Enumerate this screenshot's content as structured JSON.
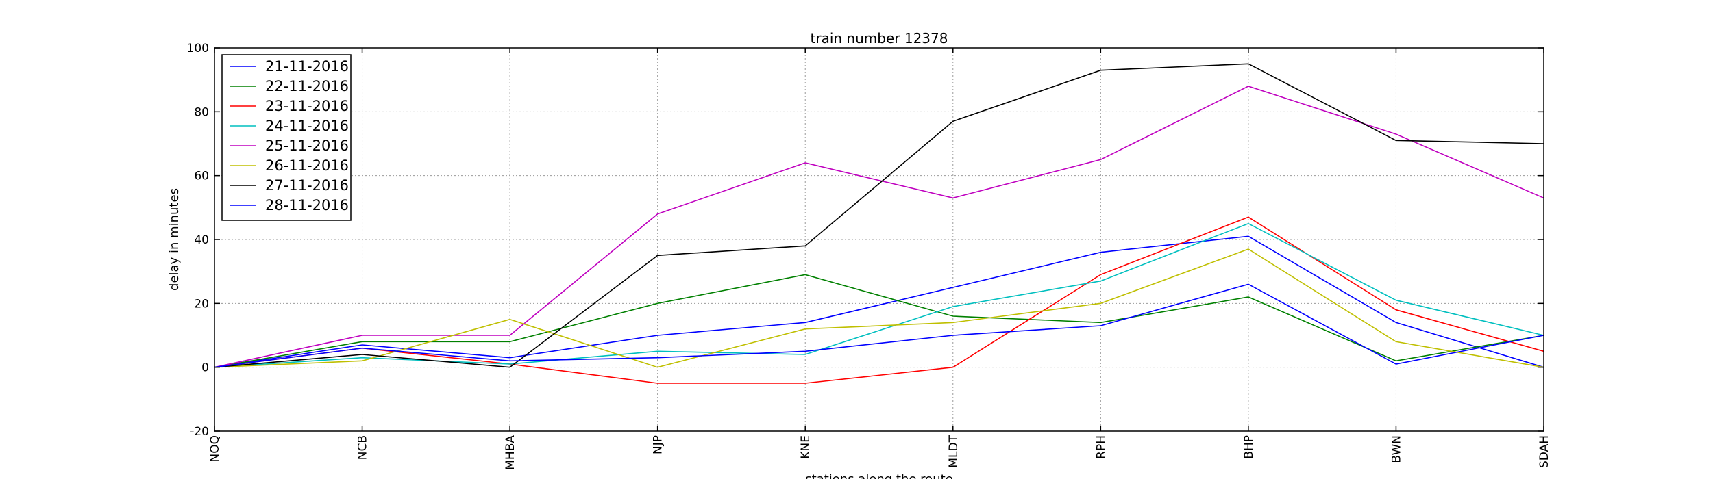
{
  "chart_data": {
    "type": "line",
    "title": "train number 12378",
    "xlabel": "stations along the route",
    "ylabel": "delay in minutes",
    "categories": [
      "NOQ",
      "NCB",
      "MHBA",
      "NJP",
      "KNE",
      "MLDT",
      "RPH",
      "BHP",
      "BWN",
      "SDAH"
    ],
    "ylim": [
      -20,
      100
    ],
    "yticks": [
      -20,
      0,
      20,
      40,
      60,
      80,
      100
    ],
    "grid": true,
    "legend_position": "top-left",
    "series": [
      {
        "name": "21-11-2016",
        "color": "#0000ff",
        "values": [
          0,
          7,
          3,
          10,
          14,
          25,
          36,
          41,
          14,
          0
        ]
      },
      {
        "name": "22-11-2016",
        "color": "#008000",
        "values": [
          0,
          8,
          8,
          20,
          29,
          16,
          14,
          22,
          2,
          10
        ]
      },
      {
        "name": "23-11-2016",
        "color": "#ff0000",
        "values": [
          0,
          6,
          1,
          -5,
          -5,
          0,
          29,
          47,
          18,
          5
        ]
      },
      {
        "name": "24-11-2016",
        "color": "#00bfbf",
        "values": [
          0,
          3,
          1,
          5,
          4,
          19,
          27,
          45,
          21,
          10
        ]
      },
      {
        "name": "25-11-2016",
        "color": "#bf00bf",
        "values": [
          0,
          10,
          10,
          48,
          64,
          53,
          65,
          88,
          73,
          53
        ]
      },
      {
        "name": "26-11-2016",
        "color": "#bfbf00",
        "values": [
          0,
          2,
          15,
          0,
          12,
          14,
          20,
          37,
          8,
          0
        ]
      },
      {
        "name": "27-11-2016",
        "color": "#000000",
        "values": [
          0,
          4,
          0,
          35,
          38,
          77,
          93,
          95,
          71,
          70
        ]
      },
      {
        "name": "28-11-2016",
        "color": "#0000ff",
        "values": [
          0,
          6,
          2,
          3,
          5,
          10,
          13,
          26,
          1,
          10
        ]
      }
    ]
  }
}
